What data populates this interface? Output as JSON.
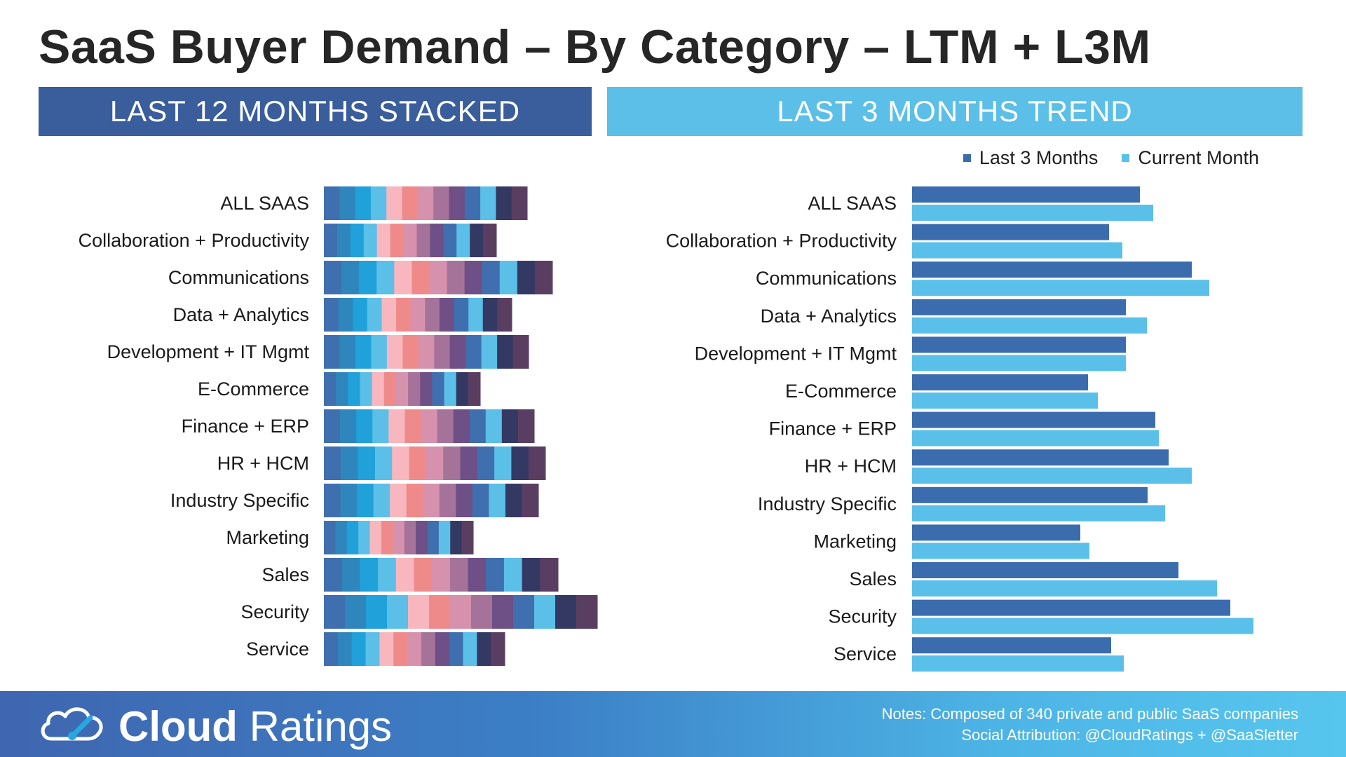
{
  "title": "SaaS Buyer Demand – By Category – LTM + L3M",
  "banners": {
    "left": "LAST 12 MONTHS STACKED",
    "right": "LAST 3 MONTHS TREND"
  },
  "colors": {
    "banner_left": "#3a5d9c",
    "banner_right": "#5bbfe8",
    "last_3_months": "#3b6cae",
    "current_month": "#5ac0e9",
    "stack_months": [
      "#3f6fae",
      "#2e86bd",
      "#20a1d9",
      "#5bbfe8",
      "#f8b7bf",
      "#ef8a8a",
      "#d692ad",
      "#a57399",
      "#6e4f86",
      "#3f6fae",
      "#5bbfe8",
      "#343963",
      "#5a3e62"
    ]
  },
  "chart_data": [
    {
      "type": "bar",
      "orientation": "horizontal",
      "stacked": true,
      "title": "LAST 12 MONTHS STACKED",
      "categories": [
        "ALL SAAS",
        "Collaboration + Productivity",
        "Communications",
        "Data + Analytics",
        "Development + IT Mgmt",
        "E-Commerce",
        "Finance + ERP",
        "HR + HCM",
        "Industry Specific",
        "Marketing",
        "Sales",
        "Security",
        "Service"
      ],
      "segments_per_bar": 13,
      "totals": [
        290,
        246,
        326,
        268,
        292,
        223,
        300,
        316,
        306,
        213,
        334,
        390,
        258
      ],
      "xlabel": "",
      "ylabel": ""
    },
    {
      "type": "bar",
      "orientation": "horizontal",
      "title": "LAST 3 MONTHS TREND",
      "categories": [
        "ALL SAAS",
        "Collaboration + Productivity",
        "Communications",
        "Data + Analytics",
        "Development + IT Mgmt",
        "E-Commerce",
        "Finance + ERP",
        "HR + HCM",
        "Industry Specific",
        "Marketing",
        "Sales",
        "Security",
        "Service"
      ],
      "series": [
        {
          "name": "Last 3 Months",
          "values": [
            325,
            281,
            399,
            305,
            305,
            251,
            347,
            366,
            336,
            240,
            380,
            454,
            284
          ]
        },
        {
          "name": "Current Month",
          "values": [
            344,
            300,
            424,
            335,
            305,
            265,
            352,
            399,
            361,
            253,
            435,
            487,
            302
          ]
        }
      ],
      "legend": "top-right",
      "xlabel": "",
      "ylabel": ""
    }
  ],
  "footer": {
    "logo_bold": "Cloud",
    "logo_light": " Ratings",
    "notes_line1": "Notes: Composed of 340 private and public SaaS companies",
    "notes_line2": "Social Attribution: @CloudRatings + @SaaSletter"
  }
}
